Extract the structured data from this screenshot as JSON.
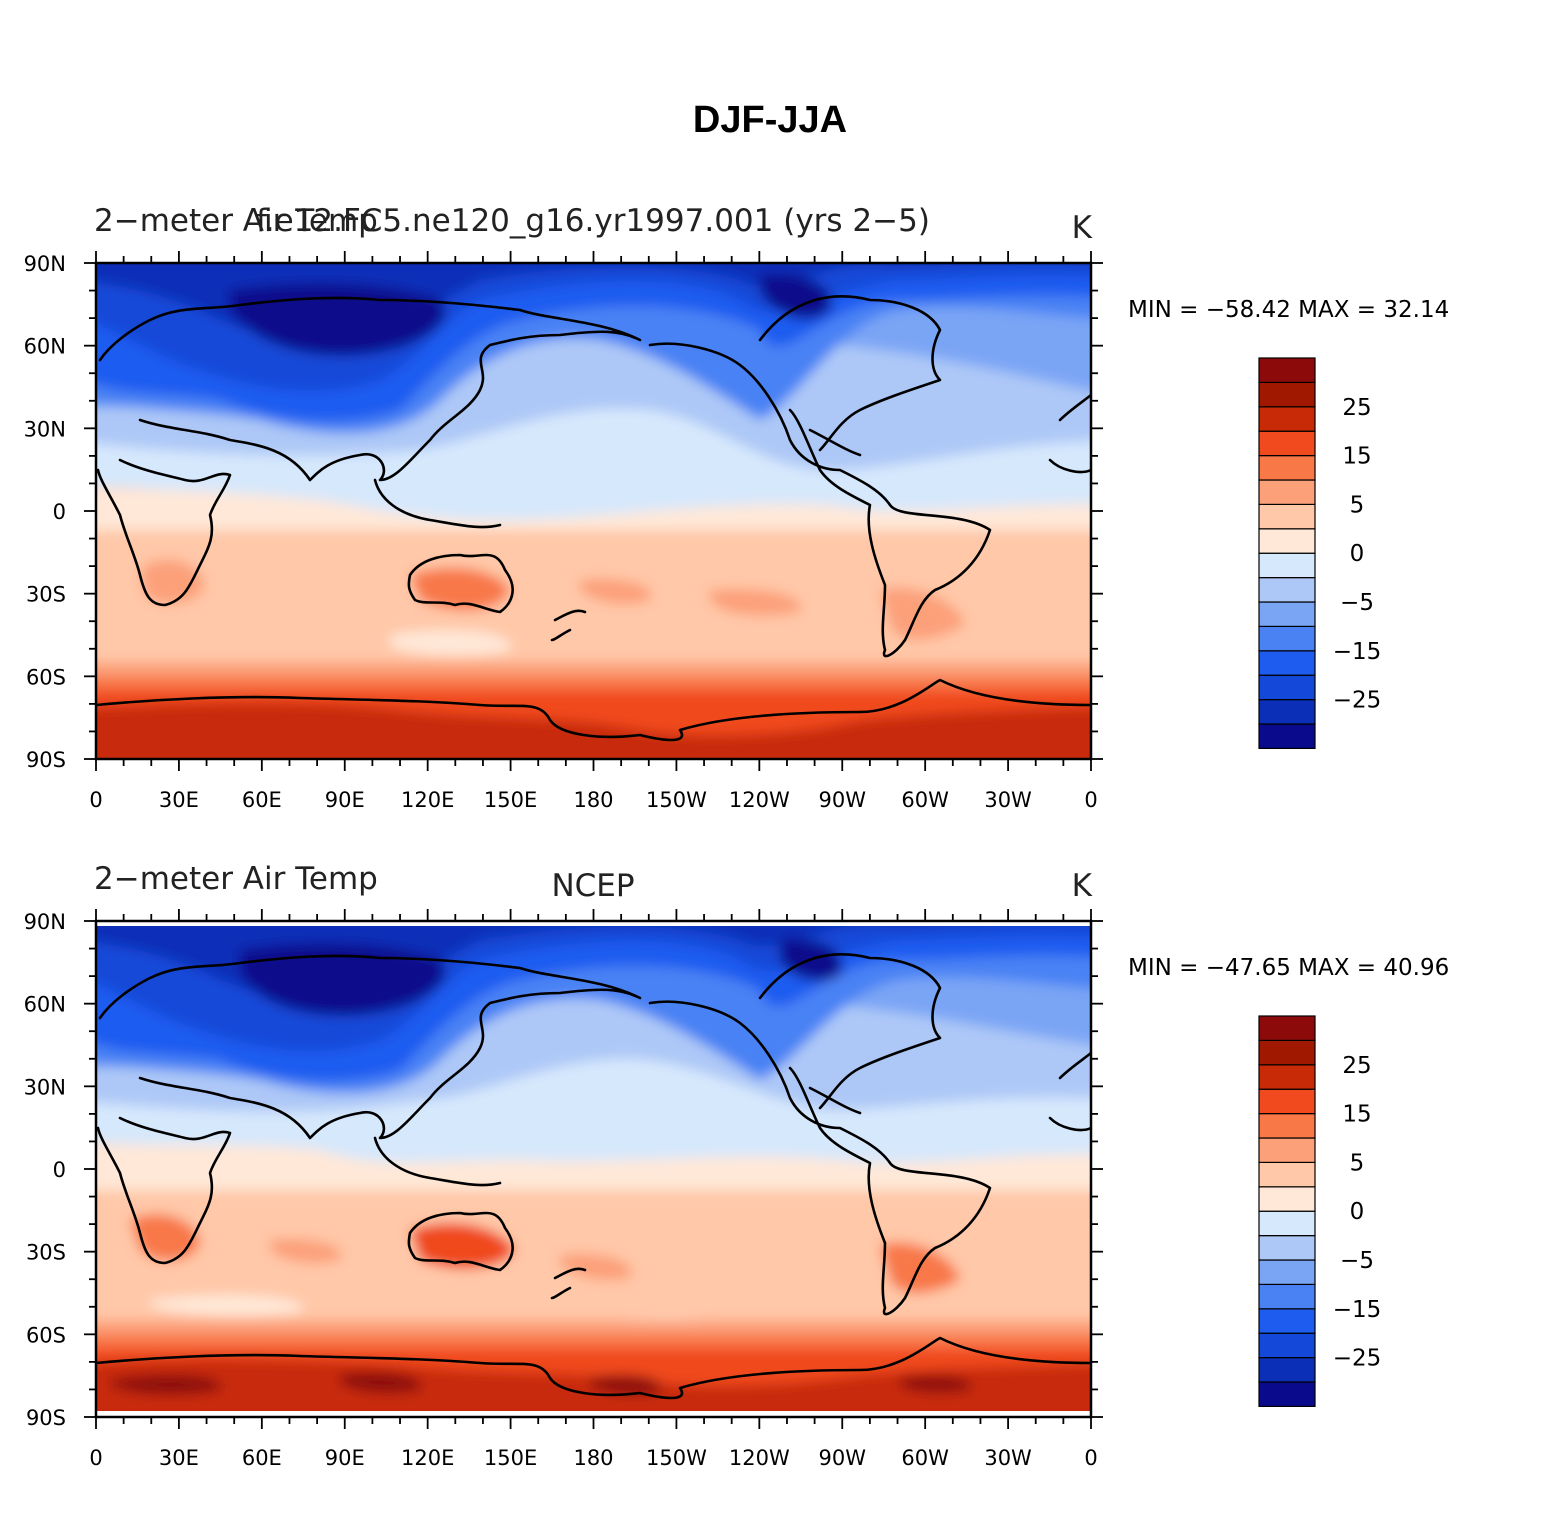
{
  "title": "DJF-JJA",
  "colormap": [
    "#0a0a8c",
    "#0c2fb8",
    "#1448d8",
    "#1e5cf0",
    "#4a82f4",
    "#7aa5f5",
    "#adc8f7",
    "#d6e8fc",
    "#ffe8d8",
    "#ffc8a8",
    "#fca07a",
    "#f87848",
    "#f04a1e",
    "#c82a08",
    "#a01800",
    "#8c0a0a"
  ],
  "colorbar_labels": [
    "25",
    "15",
    "5",
    "0",
    "−5",
    "−15",
    "−25"
  ],
  "lon_labels": [
    "0",
    "30E",
    "60E",
    "90E",
    "120E",
    "150E",
    "180",
    "150W",
    "120W",
    "90W",
    "60W",
    "30W",
    "0"
  ],
  "lat_labels": [
    "90N",
    "60N",
    "30N",
    "0",
    "30S",
    "60S",
    "90S"
  ],
  "panels": [
    {
      "left_label": "2−meter Air Temp",
      "center_label": "f.e12.FC5.ne120_g16.yr1997.001 (yrs 2−5)",
      "units": "K",
      "stats": "MIN = −58.42  MAX =   32.14"
    },
    {
      "left_label": "2−meter Air Temp",
      "center_label": "NCEP",
      "units": "K",
      "stats": "MIN = −47.65  MAX =   40.96"
    }
  ]
}
